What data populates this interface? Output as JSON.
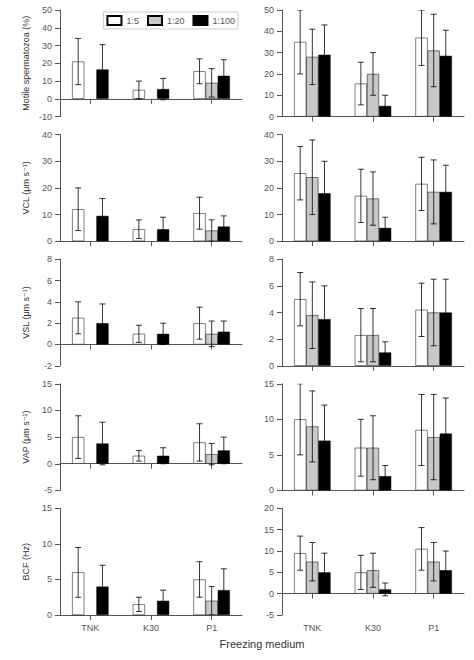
{
  "chart_data": [
    {
      "type": "bar",
      "ylabel": "Motile spermatozoa (%)",
      "categories": [
        "TNK",
        "K30",
        "P1"
      ],
      "ylim": [
        -10,
        50
      ],
      "yticks": [
        -10,
        0,
        10,
        20,
        30,
        40,
        50
      ],
      "grid": false,
      "tick_labels": "y",
      "legend": "upper right",
      "series": [
        {
          "name": "1:5",
          "color": "white",
          "values": [
            21.0,
            5.0,
            15.5
          ],
          "errors": [
            13.0,
            5.0,
            7.0
          ]
        },
        {
          "name": "1:20",
          "color": "#c8c8c8",
          "values": [
            null,
            null,
            9.0
          ],
          "errors": [
            null,
            null,
            8.0
          ]
        },
        {
          "name": "1:100",
          "color": "black",
          "values": [
            16.5,
            5.5,
            13.0
          ],
          "errors": [
            14.0,
            6.0,
            9.0
          ]
        }
      ]
    },
    {
      "type": "bar",
      "categories": [
        "TNK",
        "K30",
        "P1"
      ],
      "ylim": [
        0,
        50
      ],
      "yticks": [
        0,
        10,
        20,
        30,
        40,
        50
      ],
      "grid": false,
      "tick_labels": "y",
      "series": [
        {
          "name": "1:5",
          "color": "white",
          "values": [
            35.0,
            15.5,
            37.0
          ],
          "errors": [
            15.0,
            10.0,
            13.0
          ]
        },
        {
          "name": "1:20",
          "color": "#c8c8c8",
          "values": [
            28.0,
            20.0,
            31.0
          ],
          "errors": [
            13.0,
            10.0,
            17.0
          ]
        },
        {
          "name": "1:100",
          "color": "black",
          "values": [
            29.0,
            5.0,
            28.5
          ],
          "errors": [
            14.0,
            5.0,
            12.0
          ]
        }
      ]
    },
    {
      "type": "bar",
      "ylabel": "VCL (μm s⁻¹)",
      "categories": [
        "TNK",
        "K30",
        "P1"
      ],
      "ylim": [
        0,
        40
      ],
      "yticks": [
        0,
        10,
        20,
        30,
        40
      ],
      "grid": false,
      "tick_labels": "y",
      "series": [
        {
          "name": "1:5",
          "color": "white",
          "values": [
            12.0,
            4.5,
            10.5
          ],
          "errors": [
            8.0,
            3.5,
            6.0
          ]
        },
        {
          "name": "1:20",
          "color": "#c8c8c8",
          "values": [
            null,
            null,
            4.0
          ],
          "errors": [
            null,
            null,
            4.0
          ]
        },
        {
          "name": "1:100",
          "color": "black",
          "values": [
            9.5,
            4.5,
            5.5
          ],
          "errors": [
            6.5,
            4.5,
            4.0
          ]
        }
      ]
    },
    {
      "type": "bar",
      "categories": [
        "TNK",
        "K30",
        "P1"
      ],
      "ylim": [
        0,
        40
      ],
      "yticks": [
        0,
        10,
        20,
        30,
        40
      ],
      "grid": false,
      "tick_labels": "y",
      "series": [
        {
          "name": "1:5",
          "color": "white",
          "values": [
            25.5,
            17.0,
            21.5
          ],
          "errors": [
            10.0,
            10.0,
            10.0
          ]
        },
        {
          "name": "1:20",
          "color": "#c8c8c8",
          "values": [
            24.0,
            16.0,
            18.5
          ],
          "errors": [
            14.0,
            10.0,
            12.0
          ]
        },
        {
          "name": "1:100",
          "color": "black",
          "values": [
            18.0,
            5.0,
            18.5
          ],
          "errors": [
            12.0,
            4.0,
            10.0
          ]
        }
      ]
    },
    {
      "type": "bar",
      "ylabel": "VSL (μm s⁻¹)",
      "categories": [
        "TNK",
        "K30",
        "P1"
      ],
      "ylim": [
        -2,
        8
      ],
      "yticks": [
        -2,
        0,
        2,
        4,
        6,
        8
      ],
      "grid": false,
      "tick_labels": "y",
      "series": [
        {
          "name": "1:5",
          "color": "white",
          "values": [
            2.5,
            1.0,
            2.0
          ],
          "errors": [
            1.5,
            0.8,
            1.5
          ]
        },
        {
          "name": "1:20",
          "color": "#c8c8c8",
          "values": [
            null,
            null,
            1.0
          ],
          "errors": [
            null,
            null,
            1.2
          ]
        },
        {
          "name": "1:100",
          "color": "black",
          "values": [
            2.0,
            1.0,
            1.2
          ],
          "errors": [
            1.8,
            1.0,
            1.0
          ]
        }
      ]
    },
    {
      "type": "bar",
      "categories": [
        "TNK",
        "K30",
        "P1"
      ],
      "ylim": [
        0,
        8
      ],
      "yticks": [
        0,
        2,
        4,
        6,
        8
      ],
      "grid": false,
      "tick_labels": "y",
      "series": [
        {
          "name": "1:5",
          "color": "white",
          "values": [
            5.0,
            2.3,
            4.2
          ],
          "errors": [
            2.0,
            2.0,
            2.0
          ]
        },
        {
          "name": "1:20",
          "color": "#c8c8c8",
          "values": [
            3.8,
            2.3,
            4.0
          ],
          "errors": [
            2.5,
            2.0,
            2.5
          ]
        },
        {
          "name": "1:100",
          "color": "black",
          "values": [
            3.5,
            1.0,
            4.0
          ],
          "errors": [
            2.5,
            0.8,
            2.5
          ]
        }
      ]
    },
    {
      "type": "bar",
      "ylabel": "VAP (μm s⁻¹)",
      "categories": [
        "TNK",
        "K30",
        "P1"
      ],
      "ylim": [
        -5,
        15
      ],
      "yticks": [
        -5,
        0,
        5,
        10,
        15
      ],
      "grid": false,
      "tick_labels": "y",
      "series": [
        {
          "name": "1:5",
          "color": "white",
          "values": [
            5.0,
            1.5,
            4.0
          ],
          "errors": [
            4.0,
            1.0,
            3.5
          ]
        },
        {
          "name": "1:20",
          "color": "#c8c8c8",
          "values": [
            null,
            null,
            1.8
          ],
          "errors": [
            null,
            null,
            2.0
          ]
        },
        {
          "name": "1:100",
          "color": "black",
          "values": [
            3.8,
            1.5,
            2.5
          ],
          "errors": [
            4.0,
            1.5,
            2.5
          ]
        }
      ]
    },
    {
      "type": "bar",
      "categories": [
        "TNK",
        "K30",
        "P1"
      ],
      "ylim": [
        0,
        15
      ],
      "yticks": [
        0,
        5,
        10,
        15
      ],
      "grid": false,
      "tick_labels": "y",
      "series": [
        {
          "name": "1:5",
          "color": "white",
          "values": [
            10.0,
            6.0,
            8.5
          ],
          "errors": [
            5.0,
            4.0,
            5.0
          ]
        },
        {
          "name": "1:20",
          "color": "#c8c8c8",
          "values": [
            9.0,
            6.0,
            7.5
          ],
          "errors": [
            5.0,
            4.5,
            6.0
          ]
        },
        {
          "name": "1:100",
          "color": "black",
          "values": [
            7.0,
            2.0,
            8.0
          ],
          "errors": [
            5.0,
            1.5,
            5.0
          ]
        }
      ]
    },
    {
      "type": "bar",
      "ylabel": "BCF (Hz)",
      "categories": [
        "TNK",
        "K30",
        "P1"
      ],
      "ylim": [
        0,
        15
      ],
      "yticks": [
        0,
        5,
        10,
        15
      ],
      "grid": false,
      "series": [
        {
          "name": "1:5",
          "color": "white",
          "values": [
            6.0,
            1.5,
            5.0
          ],
          "errors": [
            3.5,
            1.0,
            2.5
          ]
        },
        {
          "name": "1:20",
          "color": "#c8c8c8",
          "values": [
            null,
            null,
            2.0
          ],
          "errors": [
            null,
            null,
            2.0
          ]
        },
        {
          "name": "1:100",
          "color": "black",
          "values": [
            4.0,
            2.0,
            3.5
          ],
          "errors": [
            3.0,
            1.5,
            3.0
          ]
        }
      ]
    },
    {
      "type": "bar",
      "categories": [
        "TNK",
        "K30",
        "P1"
      ],
      "ylim": [
        -5,
        20
      ],
      "yticks": [
        -5,
        0,
        5,
        10,
        15,
        20
      ],
      "grid": false,
      "series": [
        {
          "name": "1:5",
          "color": "white",
          "values": [
            9.5,
            5.0,
            10.5
          ],
          "errors": [
            4.0,
            4.0,
            5.0
          ]
        },
        {
          "name": "1:20",
          "color": "#c8c8c8",
          "values": [
            7.5,
            5.5,
            7.5
          ],
          "errors": [
            4.5,
            4.0,
            4.5
          ]
        },
        {
          "name": "1:100",
          "color": "black",
          "values": [
            5.0,
            1.0,
            5.5
          ],
          "errors": [
            4.5,
            1.5,
            4.5
          ]
        }
      ]
    }
  ],
  "xlabel": "Freezing medium"
}
